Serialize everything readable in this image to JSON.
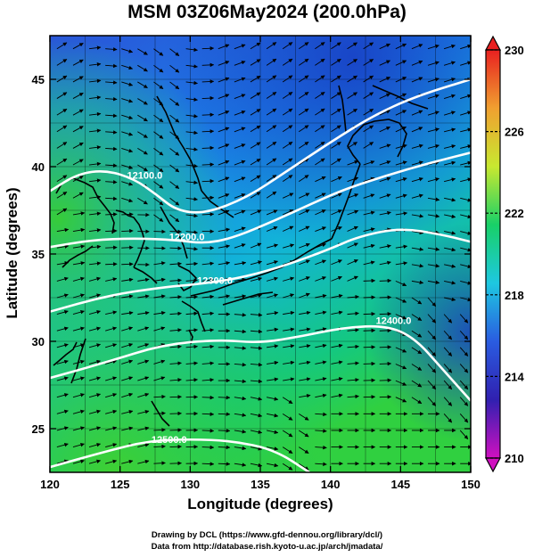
{
  "title": "MSM 03Z06May2024 (200.0hPa)",
  "x_axis": {
    "label": "Longitude (degrees)",
    "min": 120,
    "max": 150,
    "ticks": [
      120,
      125,
      130,
      135,
      140,
      145,
      150
    ]
  },
  "y_axis": {
    "label": "Latitude  (degrees)",
    "min": 22.5,
    "max": 47.5,
    "ticks": [
      25,
      30,
      35,
      40,
      45
    ]
  },
  "colorbar": {
    "min": 210,
    "max": 230,
    "tick_labels": [
      "230",
      "226",
      "222",
      "218",
      "214",
      "210"
    ],
    "stops": [
      "#d010c0",
      "#3020b0",
      "#2a5ce0",
      "#1ec8e0",
      "#18d068",
      "#c8e830",
      "#f0a030",
      "#e82020"
    ]
  },
  "contours": [
    {
      "value": 12100,
      "label": "12100.0",
      "points": [
        [
          120,
          38.6
        ],
        [
          122,
          39.6
        ],
        [
          124,
          39.8
        ],
        [
          126,
          39.3
        ],
        [
          127.6,
          38.4
        ],
        [
          129,
          37.5
        ],
        [
          131,
          37.3
        ],
        [
          134,
          38.2
        ],
        [
          137,
          39.8
        ],
        [
          140,
          41.4
        ],
        [
          143,
          42.9
        ],
        [
          146,
          44.0
        ],
        [
          150,
          45.0
        ]
      ]
    },
    {
      "value": 12200,
      "label": "12200.0",
      "points": [
        [
          120,
          35.4
        ],
        [
          123,
          35.8
        ],
        [
          126,
          35.9
        ],
        [
          129,
          35.8
        ],
        [
          131,
          35.6
        ],
        [
          133,
          35.9
        ],
        [
          136,
          36.9
        ],
        [
          139,
          38.0
        ],
        [
          141,
          38.7
        ],
        [
          144,
          39.5
        ],
        [
          147,
          40.2
        ],
        [
          150,
          40.8
        ]
      ]
    },
    {
      "value": 12300,
      "label": "12300.0",
      "points": [
        [
          120,
          31.7
        ],
        [
          124,
          32.6
        ],
        [
          128,
          33.1
        ],
        [
          131,
          33.3
        ],
        [
          134,
          33.7
        ],
        [
          137,
          34.4
        ],
        [
          140,
          35.3
        ],
        [
          142,
          36.0
        ],
        [
          145,
          36.5
        ],
        [
          148,
          36.1
        ],
        [
          150,
          35.7
        ]
      ]
    },
    {
      "value": 12400,
      "label": "12400.0",
      "points": [
        [
          120,
          27.9
        ],
        [
          124,
          28.8
        ],
        [
          128,
          29.8
        ],
        [
          132,
          30.1
        ],
        [
          135,
          29.9
        ],
        [
          138,
          30.3
        ],
        [
          141,
          30.8
        ],
        [
          144,
          30.9
        ],
        [
          146,
          30.2
        ],
        [
          148,
          28.4
        ],
        [
          150,
          26.6
        ]
      ]
    },
    {
      "value": 12500,
      "label": "12500.0",
      "points": [
        [
          120,
          22.8
        ],
        [
          124,
          23.7
        ],
        [
          127,
          24.3
        ],
        [
          130,
          24.4
        ],
        [
          133,
          24.3
        ],
        [
          136,
          23.8
        ],
        [
          138.5,
          22.5
        ]
      ]
    }
  ]
}
